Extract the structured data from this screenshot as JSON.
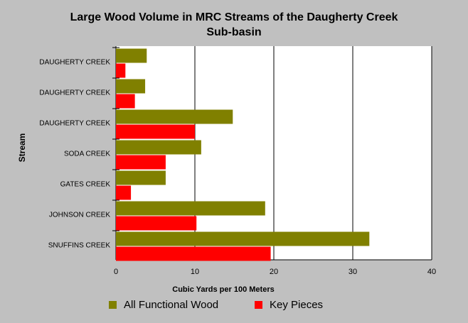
{
  "chart_data": {
    "type": "bar",
    "orientation": "horizontal",
    "title_lines": [
      "Large Wood Volume in MRC Streams of the Daugherty Creek",
      "Sub-basin"
    ],
    "xlabel": "Cubic Yards per 100 Meters",
    "ylabel": "Stream",
    "xlim": [
      0,
      40
    ],
    "xticks": [
      "0",
      "10",
      "20",
      "30",
      "40"
    ],
    "grid": "vertical",
    "legend_position": "bottom",
    "categories": [
      "DAUGHERTY CREEK",
      "DAUGHERTY CREEK",
      "DAUGHERTY CREEK",
      "SODA CREEK",
      "GATES CREEK",
      "JOHNSON CREEK",
      "SNUFFINS CREEK"
    ],
    "series": [
      {
        "name": "All Functional Wood",
        "color": "#808000",
        "values": [
          3.9,
          3.7,
          14.8,
          10.8,
          6.3,
          18.9,
          32.1
        ]
      },
      {
        "name": "Key Pieces",
        "color": "#ff0000",
        "values": [
          1.2,
          2.4,
          10.0,
          6.3,
          1.9,
          10.2,
          19.6
        ]
      }
    ]
  }
}
